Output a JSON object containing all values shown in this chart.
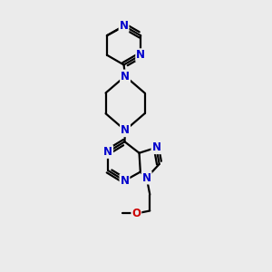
{
  "bg_color": "#ebebeb",
  "bond_color": "#000000",
  "n_color": "#0000cc",
  "o_color": "#cc0000",
  "line_width": 1.6,
  "font_size": 8.5,
  "figsize": [
    3.0,
    3.0
  ],
  "dpi": 100,
  "xlim": [
    0,
    10
  ],
  "ylim": [
    0,
    10
  ]
}
